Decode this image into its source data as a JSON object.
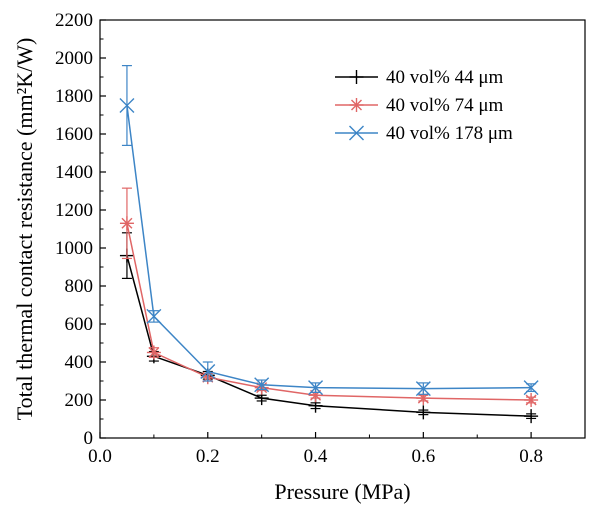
{
  "chart_data": {
    "type": "line",
    "xlabel": "Pressure (MPa)",
    "ylabel": "Total thermal contact resistance (mm²K/W)",
    "xlim": [
      0.0,
      0.9
    ],
    "ylim": [
      0,
      2200
    ],
    "xticks": [
      0.0,
      0.2,
      0.4,
      0.6,
      0.8
    ],
    "yticks": [
      0,
      200,
      400,
      600,
      800,
      1000,
      1200,
      1400,
      1600,
      1800,
      2000,
      2200
    ],
    "x": [
      0.05,
      0.1,
      0.2,
      0.3,
      0.4,
      0.6,
      0.8
    ],
    "legend_position": "top-right",
    "series": [
      {
        "name": "40 vol% 44 μm",
        "color": "#000000",
        "marker": "plus",
        "values": [
          960,
          430,
          330,
          210,
          170,
          135,
          115
        ],
        "errors": [
          120,
          25,
          20,
          15,
          15,
          12,
          12
        ]
      },
      {
        "name": "40 vol% 74 μm",
        "color": "#e06666",
        "marker": "asterisk",
        "values": [
          1130,
          450,
          320,
          265,
          225,
          210,
          200
        ],
        "errors": [
          185,
          25,
          20,
          15,
          15,
          15,
          15
        ]
      },
      {
        "name": "40 vol% 178 μm",
        "color": "#3d85c6",
        "marker": "x",
        "values": [
          1750,
          640,
          350,
          280,
          265,
          260,
          265
        ],
        "errors": [
          210,
          30,
          50,
          25,
          25,
          30,
          20
        ]
      }
    ]
  }
}
